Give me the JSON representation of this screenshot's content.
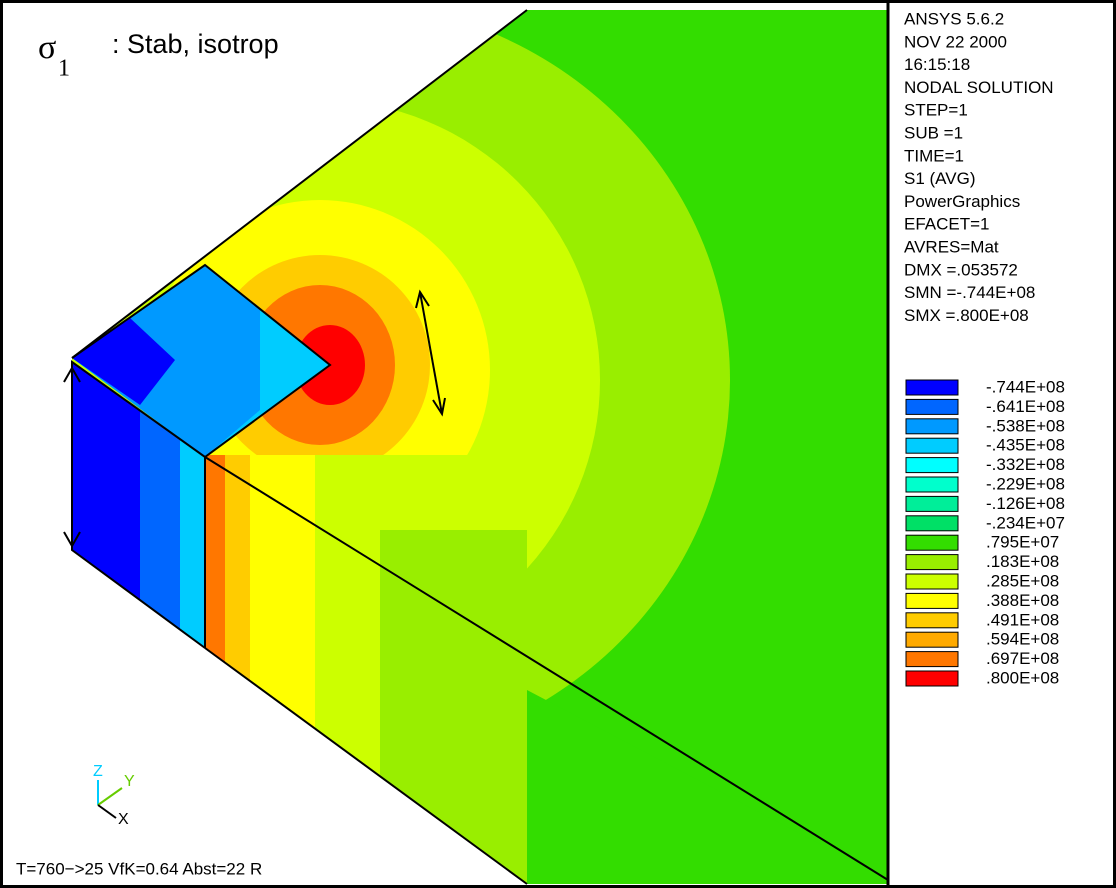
{
  "title": {
    "symbol": "σ",
    "subscript": "1",
    "text": ": Stab, isotrop"
  },
  "info": [
    "ANSYS 5.6.2",
    "NOV 22 2000",
    "16:15:18",
    "NODAL SOLUTION",
    "STEP=1",
    "SUB =1",
    "TIME=1",
    "S1      (AVG)",
    "PowerGraphics",
    "EFACET=1",
    "AVRES=Mat",
    "DMX =.053572",
    "SMN =-.744E+08",
    "SMX =.800E+08"
  ],
  "legend": [
    {
      "label": "-.744E+08",
      "color": "#0000ff"
    },
    {
      "label": "-.641E+08",
      "color": "#0066ff"
    },
    {
      "label": "-.538E+08",
      "color": "#0099ff"
    },
    {
      "label": "-.435E+08",
      "color": "#00ccff"
    },
    {
      "label": "-.332E+08",
      "color": "#00ffff"
    },
    {
      "label": "-.229E+08",
      "color": "#00ffcc"
    },
    {
      "label": "-.126E+08",
      "color": "#00ee99"
    },
    {
      "label": "-.234E+07",
      "color": "#00e066"
    },
    {
      "label": ".795E+07",
      "color": "#33dd00"
    },
    {
      "label": ".183E+08",
      "color": "#99ee00"
    },
    {
      "label": ".285E+08",
      "color": "#ccff00"
    },
    {
      "label": ".388E+08",
      "color": "#ffff00"
    },
    {
      "label": ".491E+08",
      "color": "#ffcc00"
    },
    {
      "label": ".594E+08",
      "color": "#ffaa00"
    },
    {
      "label": ".697E+08",
      "color": "#ff7700"
    },
    {
      "label": ".800E+08",
      "color": "#ff0000"
    }
  ],
  "triad": {
    "z": "Z",
    "y": "Y",
    "x": "X"
  },
  "footer": "T=760−>25   VfK=0.64   Abst=22 R"
}
